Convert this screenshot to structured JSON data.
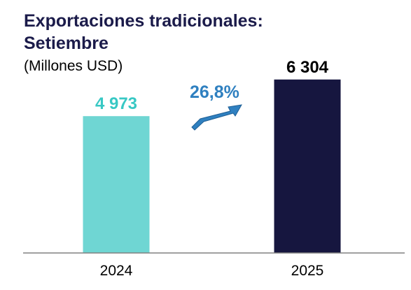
{
  "chart_data": {
    "type": "bar",
    "title_line1": "Exportaciones tradicionales:",
    "title_line2": "Setiembre",
    "subtitle": "(Millones USD)",
    "categories": [
      "2024",
      "2025"
    ],
    "values": [
      4973,
      6304
    ],
    "value_labels": [
      "4 973",
      "6 304"
    ],
    "bar_colors": [
      "#6fd6d3",
      "#16163f"
    ],
    "value_label_colors": [
      "#38c8c4",
      "#000000"
    ],
    "ylim": [
      0,
      8000
    ],
    "grid": false,
    "annotation": {
      "text": "26,8%",
      "color": "#2f80c0"
    },
    "colors": {
      "title": "#1b1b4a",
      "axis": "#808080",
      "text": "#000000",
      "arrow": "#2f80c0",
      "arrow_edge": "#1f5f95"
    }
  }
}
